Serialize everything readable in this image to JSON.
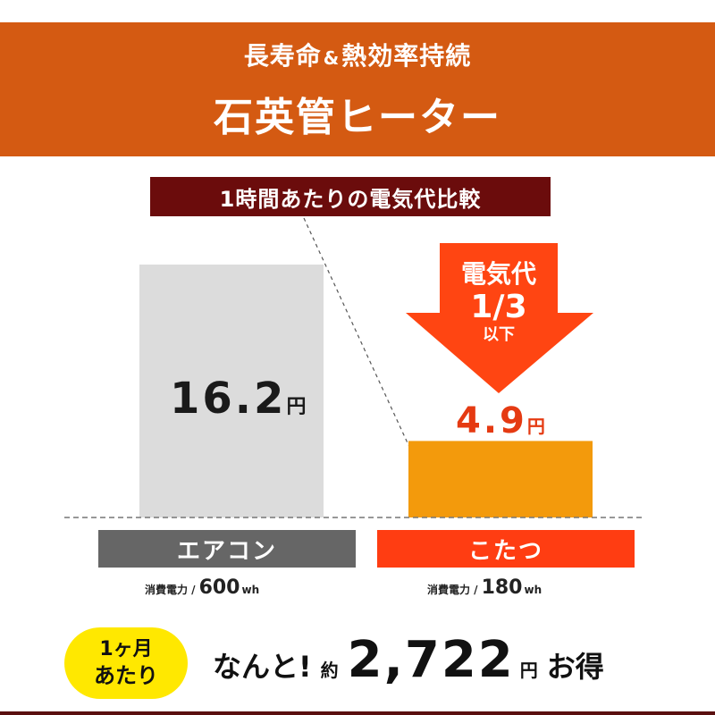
{
  "header": {
    "subtitle_a": "長寿命",
    "subtitle_amp": "&",
    "subtitle_b": "熱効率持続",
    "title": "石英管ヒーター"
  },
  "comparison_label": "1時間あたりの電気代比較",
  "arrow": {
    "line1": "電気代",
    "line2": "1/3",
    "line3": "以下"
  },
  "colors": {
    "header": "#d45a12",
    "label_bg": "#6b0c0c",
    "bar_aircon": "#dcdcdc",
    "bar_kotatsu": "#f39a0c",
    "arrow": "#ff4512",
    "badge": "#ffe800"
  },
  "chart_data": {
    "type": "bar",
    "title": "1時間あたりの電気代比較",
    "categories": [
      "エアコン",
      "こたつ"
    ],
    "values": [
      16.2,
      4.9
    ],
    "value_labels": [
      "16.2",
      "4.9"
    ],
    "unit": "円",
    "power": [
      {
        "label": "消費電力 /",
        "value": "600",
        "unit": "wh"
      },
      {
        "label": "消費電力 /",
        "value": "180",
        "unit": "wh"
      }
    ]
  },
  "badge": {
    "line1": "1ヶ月",
    "line2": "あたり"
  },
  "savings": {
    "prefix": "なんと!",
    "approx": "約",
    "amount": "2,722",
    "unit": "円",
    "suffix": "お得"
  }
}
